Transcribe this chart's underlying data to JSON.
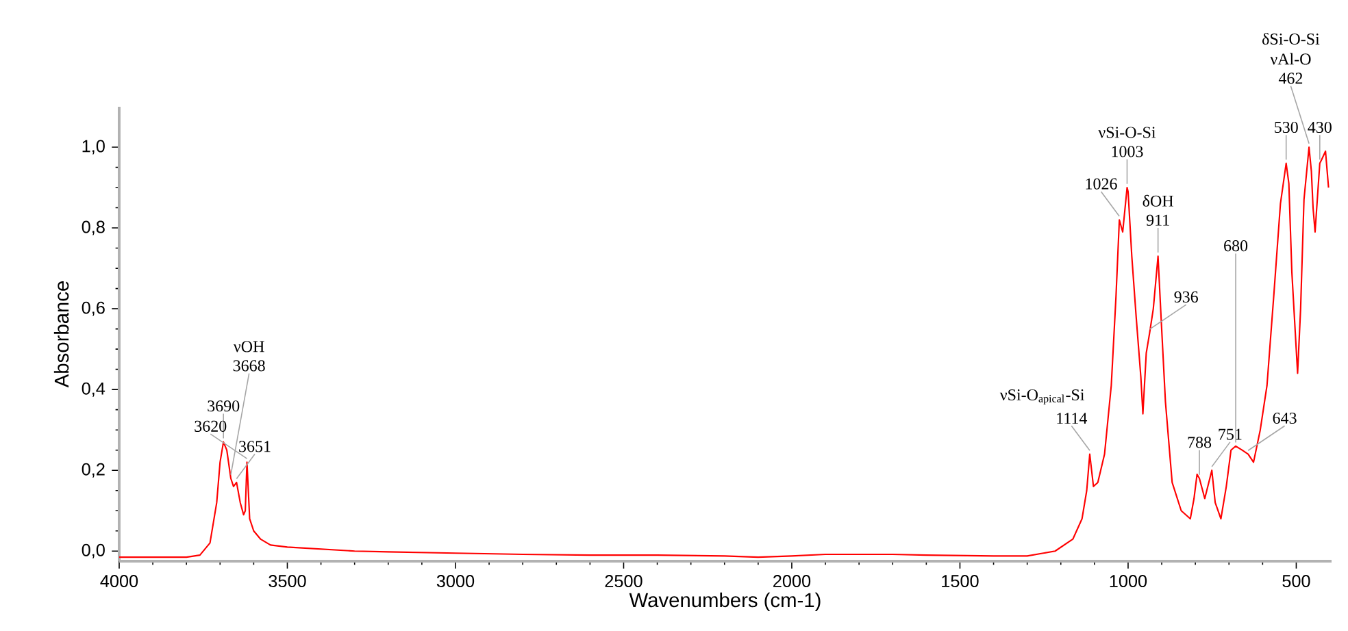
{
  "chart_data": {
    "type": "line",
    "xlabel": "Wavenumbers (cm-1)",
    "ylabel": "Absorbance",
    "xlim": [
      4000,
      395
    ],
    "xticks": [
      4000,
      3500,
      3000,
      2500,
      2000,
      1500,
      1000,
      500
    ],
    "ylim": [
      -0.025,
      1.1
    ],
    "yticks": [
      {
        "value": 0,
        "label": "0,0"
      },
      {
        "value": 0.2,
        "label": "0,2"
      },
      {
        "value": 0.4,
        "label": "0,4"
      },
      {
        "value": 0.6,
        "label": "0,6"
      },
      {
        "value": 0.8,
        "label": "0,8"
      },
      {
        "value": 1.0,
        "label": "1,0"
      }
    ],
    "grid": false,
    "series": [
      {
        "color": "#ff0000",
        "x": [
          4000,
          3800,
          3760,
          3730,
          3710,
          3700,
          3690,
          3680,
          3668,
          3660,
          3651,
          3640,
          3630,
          3625,
          3620,
          3612,
          3600,
          3580,
          3550,
          3500,
          3400,
          3300,
          3200,
          3000,
          2800,
          2600,
          2400,
          2200,
          2100,
          2000,
          1900,
          1700,
          1600,
          1400,
          1300,
          1217,
          1164,
          1137,
          1123,
          1114,
          1103,
          1090,
          1070,
          1050,
          1036,
          1026,
          1016,
          1003,
          1000,
          989,
          976,
          962,
          956,
          946,
          936,
          925,
          911,
          902,
          889,
          869,
          842,
          815,
          804,
          795,
          788,
          772,
          751,
          741,
          724,
          708,
          694,
          680,
          661,
          643,
          627,
          607,
          587,
          567,
          547,
          530,
          522,
          513,
          496,
          487,
          477,
          462,
          455,
          450,
          444,
          430,
          424,
          413,
          404
        ],
        "values": [
          -0.015,
          -0.015,
          -0.01,
          0.02,
          0.12,
          0.22,
          0.27,
          0.25,
          0.18,
          0.16,
          0.17,
          0.12,
          0.09,
          0.1,
          0.22,
          0.08,
          0.05,
          0.03,
          0.015,
          0.01,
          0.005,
          0.0,
          -0.002,
          -0.005,
          -0.008,
          -0.01,
          -0.01,
          -0.012,
          -0.015,
          -0.012,
          -0.008,
          -0.008,
          -0.01,
          -0.012,
          -0.012,
          0.0,
          0.03,
          0.08,
          0.15,
          0.24,
          0.16,
          0.17,
          0.24,
          0.41,
          0.63,
          0.82,
          0.79,
          0.9,
          0.89,
          0.73,
          0.58,
          0.43,
          0.34,
          0.49,
          0.54,
          0.6,
          0.73,
          0.58,
          0.37,
          0.17,
          0.1,
          0.08,
          0.13,
          0.19,
          0.18,
          0.13,
          0.2,
          0.12,
          0.08,
          0.16,
          0.25,
          0.26,
          0.25,
          0.24,
          0.22,
          0.3,
          0.41,
          0.63,
          0.86,
          0.96,
          0.91,
          0.69,
          0.44,
          0.6,
          0.87,
          1.0,
          0.94,
          0.85,
          0.79,
          0.96,
          0.97,
          0.99,
          0.9
        ]
      }
    ],
    "annotations": [
      {
        "text": "3690",
        "x": 3690,
        "y": 0.27
      },
      {
        "text": "3651",
        "x": 3651,
        "y": 0.17
      },
      {
        "text": "3620",
        "x": 3620,
        "y": 0.22
      },
      {
        "text": "3668",
        "x": 3668,
        "y": 0.18
      },
      "νOH",
      {
        "text": "1114",
        "x": 1114,
        "y": 0.24
      },
      "νSi-O$_{apical}$-Si",
      {
        "text": "1026",
        "x": 1026,
        "y": 0.82
      },
      {
        "text": "1003",
        "x": 1003,
        "y": 0.9
      },
      "νSi-O-Si",
      {
        "text": "936",
        "x": 936,
        "y": 0.54
      },
      {
        "text": "911",
        "x": 911,
        "y": 0.73
      },
      "δOH",
      {
        "text": "788",
        "x": 788,
        "y": 0.18
      },
      {
        "text": "751",
        "x": 751,
        "y": 0.2
      },
      {
        "text": "680",
        "x": 680,
        "y": 0.26
      },
      {
        "text": "643",
        "x": 643,
        "y": 0.24
      },
      {
        "text": "530",
        "x": 530,
        "y": 0.96
      },
      {
        "text": "430",
        "x": 430,
        "y": 0.96
      },
      {
        "text": "462",
        "x": 462,
        "y": 1.0
      },
      "νAl-O",
      "δSi-O-Si"
    ]
  }
}
